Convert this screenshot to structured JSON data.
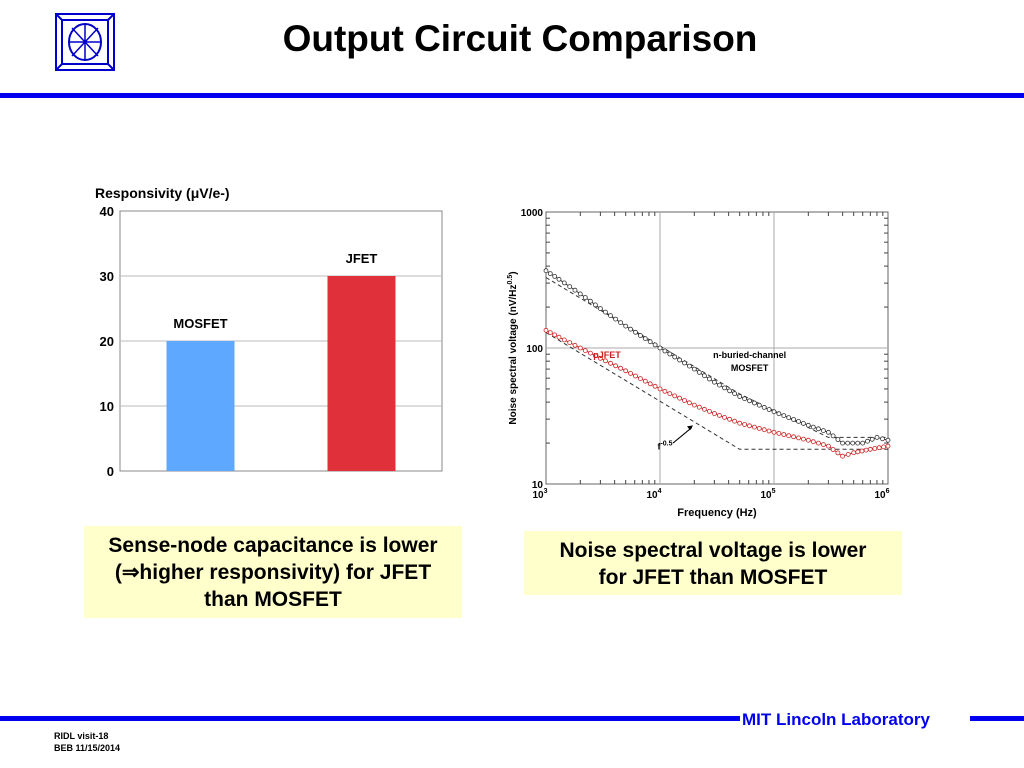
{
  "title": "Output Circuit Comparison",
  "footer": {
    "lab": "MIT Lincoln Laboratory",
    "line1": "RIDL visit-18",
    "line2": "BEB 11/15/2014"
  },
  "captions": {
    "left": [
      "Sense-node capacitance is lower",
      "(⇒higher responsivity) for JFET",
      "than MOSFET"
    ],
    "right": [
      "Noise spectral voltage is lower",
      "for JFET than MOSFET"
    ]
  },
  "chart_data": [
    {
      "type": "bar",
      "title": "Responsivity (μV/e-)",
      "categories": [
        "MOSFET",
        "JFET"
      ],
      "values": [
        20,
        30
      ],
      "colors": [
        "#5ea9ff",
        "#e0303a"
      ],
      "ylim": [
        0,
        40
      ],
      "yticks": [
        "0",
        "10",
        "20",
        "30",
        "40"
      ],
      "grid": true
    },
    {
      "type": "line",
      "xscale": "log",
      "yscale": "log",
      "xlim": [
        1000,
        1000000
      ],
      "ylim": [
        10,
        1000
      ],
      "xlabel": "Frequency (Hz)",
      "ylabel": "Noise spectral voltage (nV/Hz",
      "ylabel_sup": "0.5",
      "ylabel_end": ")",
      "xticks": [
        {
          "base": "10",
          "exp": "3"
        },
        {
          "base": "10",
          "exp": "4"
        },
        {
          "base": "10",
          "exp": "5"
        },
        {
          "base": "10",
          "exp": "6"
        }
      ],
      "yticks": [
        "10",
        "100",
        "1000"
      ],
      "grid": true,
      "series": [
        {
          "name": "n-buried-channel MOSFET",
          "color": "#333333",
          "points": [
            [
              1000,
              370
            ],
            [
              1300,
              320
            ],
            [
              2000,
              250
            ],
            [
              3000,
              195
            ],
            [
              5000,
              145
            ],
            [
              10000,
              100
            ],
            [
              20000,
              70
            ],
            [
              30000,
              56
            ],
            [
              50000,
              44
            ],
            [
              100000,
              34
            ],
            [
              200000,
              27
            ],
            [
              300000,
              24
            ],
            [
              400000,
              20
            ],
            [
              600000,
              20
            ],
            [
              800000,
              22
            ],
            [
              1000000,
              21
            ]
          ]
        },
        {
          "name": "pJFET",
          "color": "#cc2222",
          "points": [
            [
              1000,
              135
            ],
            [
              1300,
              120
            ],
            [
              2000,
              100
            ],
            [
              3000,
              84
            ],
            [
              5000,
              68
            ],
            [
              10000,
              50
            ],
            [
              20000,
              38
            ],
            [
              30000,
              33
            ],
            [
              50000,
              28
            ],
            [
              100000,
              24
            ],
            [
              200000,
              21
            ],
            [
              300000,
              19
            ],
            [
              400000,
              16
            ],
            [
              500000,
              17
            ],
            [
              700000,
              18
            ],
            [
              1000000,
              19
            ]
          ]
        }
      ],
      "fits": [
        {
          "points": [
            [
              1000,
              330
            ],
            [
              50000,
              46
            ],
            [
              300000,
              22
            ],
            [
              1000000,
              22
            ]
          ]
        },
        {
          "points": [
            [
              1000,
              130
            ],
            [
              50000,
              18
            ],
            [
              1000000,
              18
            ]
          ]
        }
      ],
      "annotations": {
        "mosfet_line1": "n-buried-channel",
        "mosfet_line2": "MOSFET",
        "jfet": "pJFET",
        "slope_base": "f",
        "slope_exp": "-0.5"
      }
    }
  ]
}
